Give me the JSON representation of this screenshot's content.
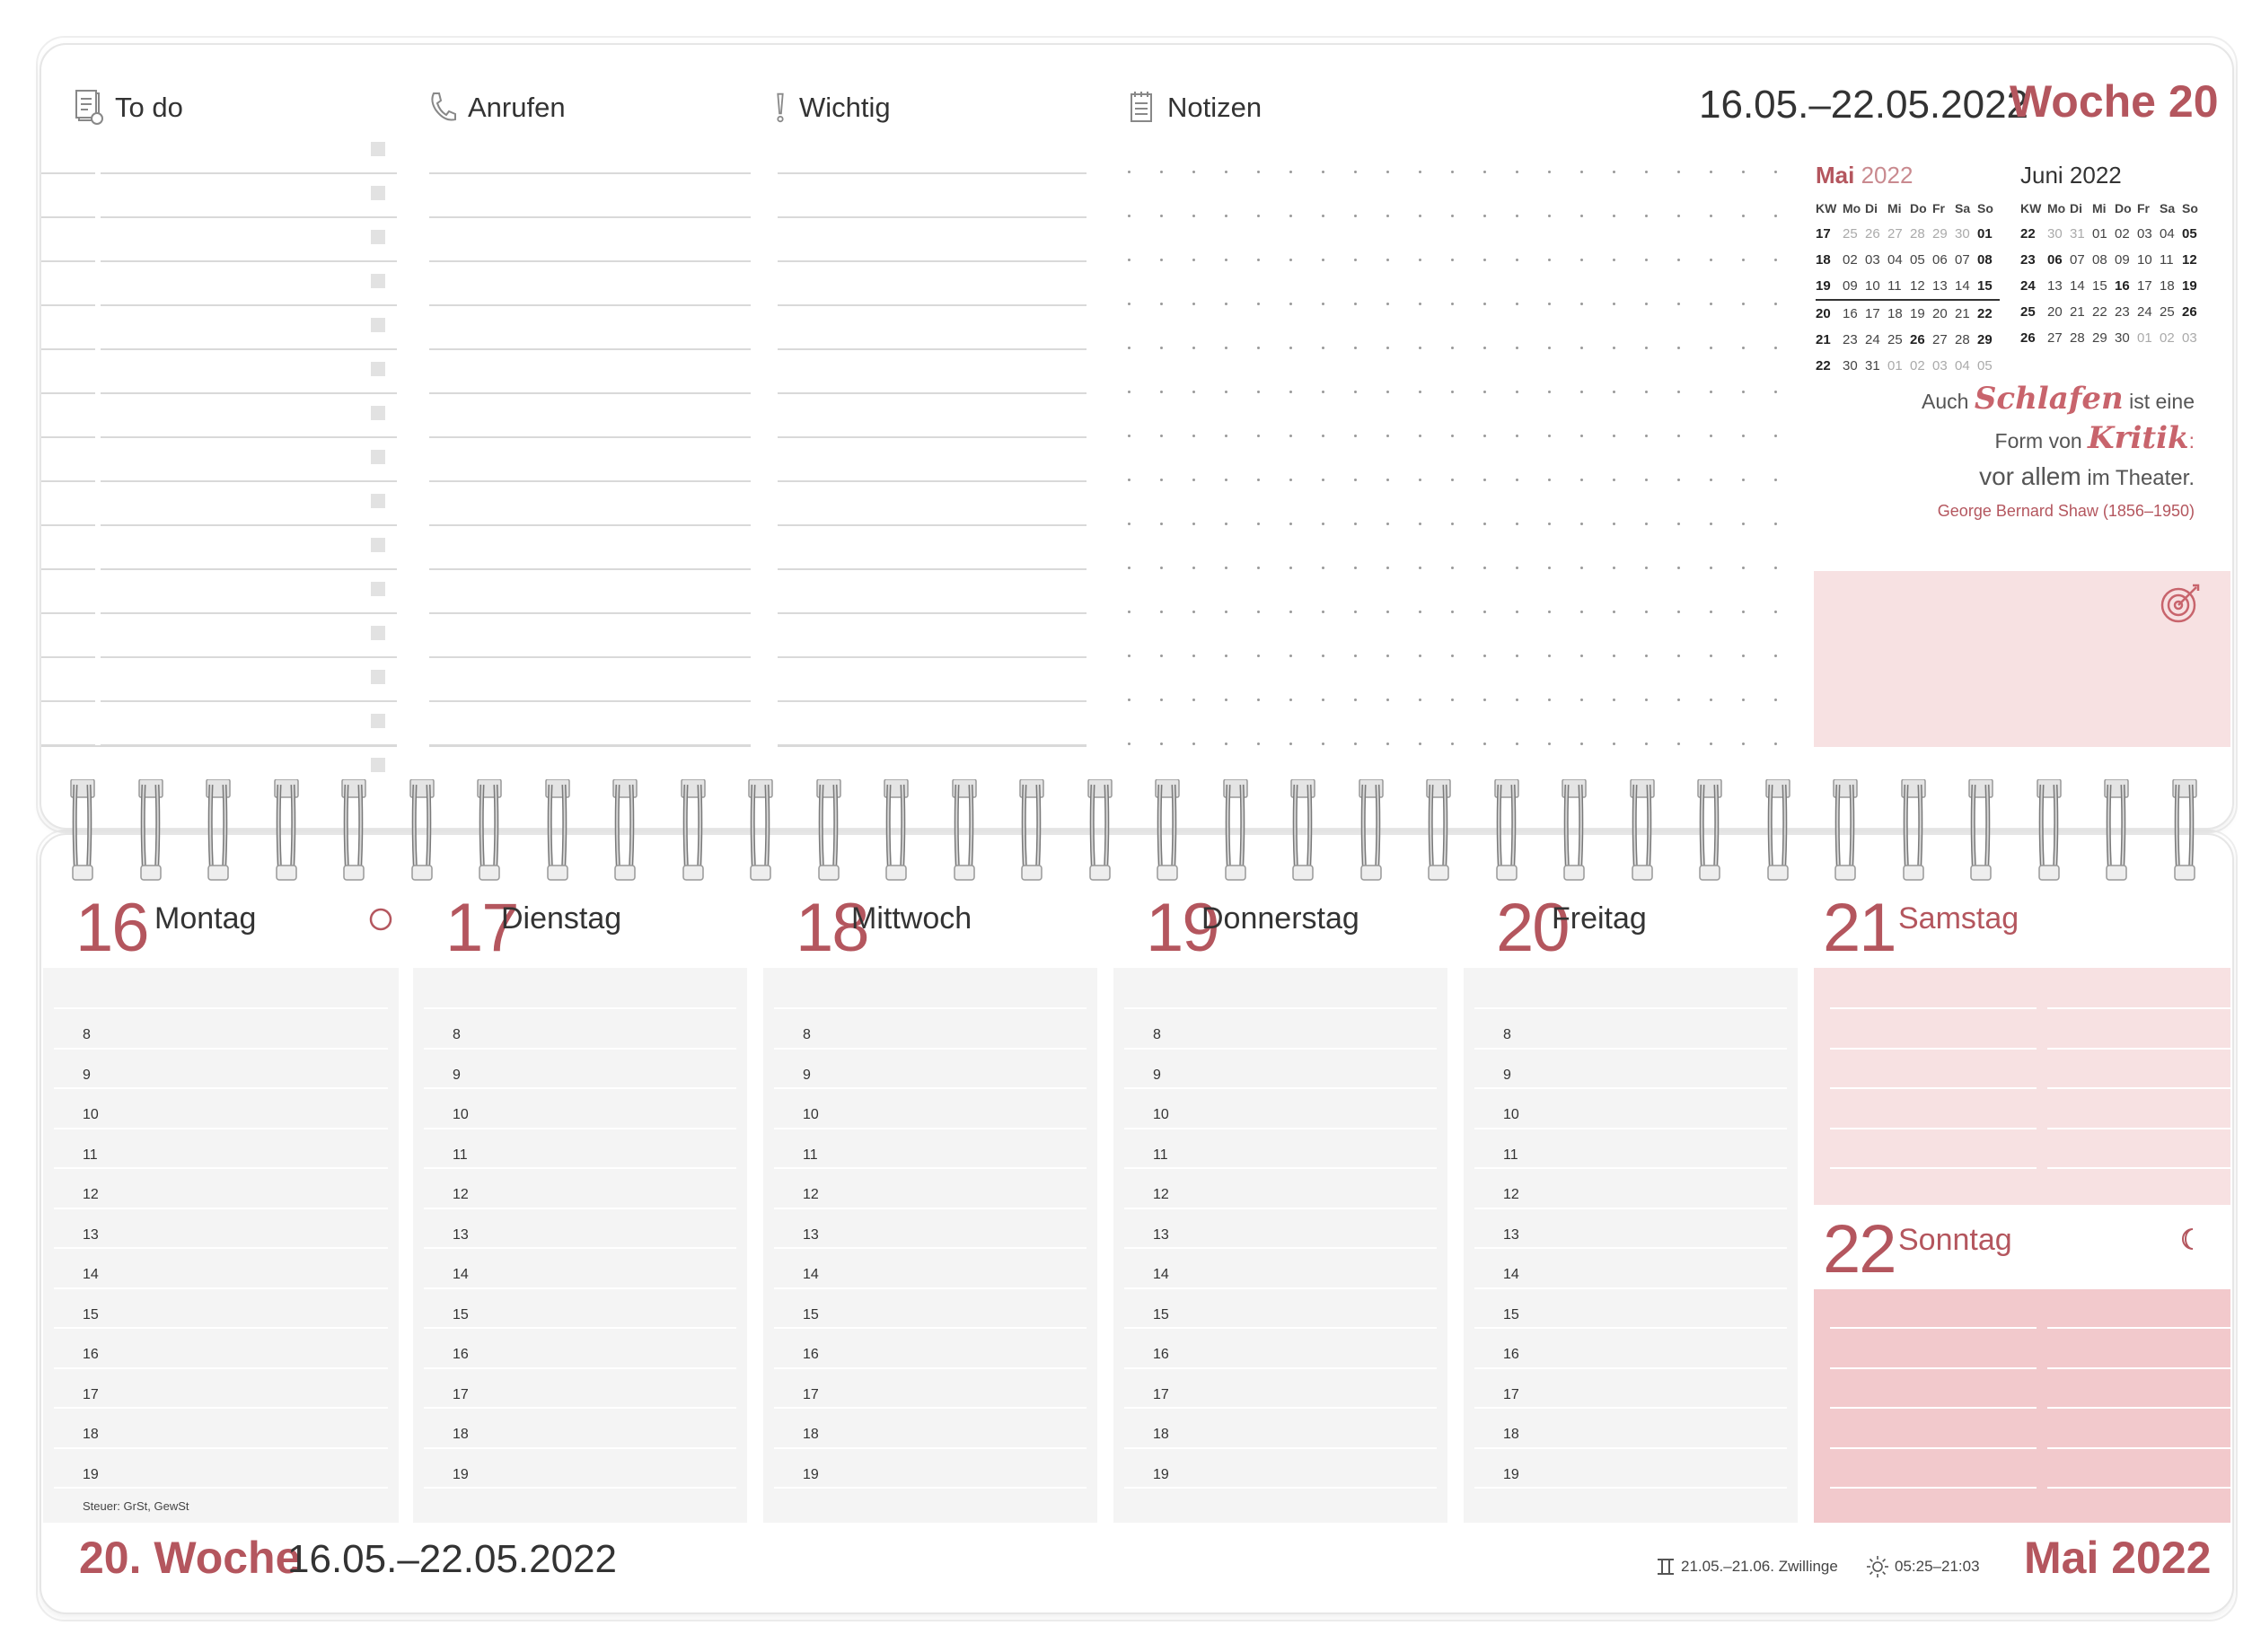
{
  "header": {
    "columns": [
      {
        "label": "To do",
        "icon": "todo-list-icon"
      },
      {
        "label": "Anrufen",
        "icon": "phone-icon"
      },
      {
        "label": "Wichtig",
        "icon": "exclamation-icon"
      },
      {
        "label": "Notizen",
        "icon": "notepad-icon"
      }
    ],
    "week_dates": "16.05.–22.05.2022",
    "week_label": "Woche 20"
  },
  "mini_calendars": [
    {
      "month": "Mai",
      "year": "2022",
      "headers": [
        "KW",
        "Mo",
        "Di",
        "Mi",
        "Do",
        "Fr",
        "Sa",
        "So"
      ],
      "rows": [
        [
          "17",
          "25",
          "26",
          "27",
          "28",
          "29",
          "30",
          "01"
        ],
        [
          "18",
          "02",
          "03",
          "04",
          "05",
          "06",
          "07",
          "08"
        ],
        [
          "19",
          "09",
          "10",
          "11",
          "12",
          "13",
          "14",
          "15"
        ],
        [
          "20",
          "16",
          "17",
          "18",
          "19",
          "20",
          "21",
          "22"
        ],
        [
          "21",
          "23",
          "24",
          "25",
          "26",
          "27",
          "28",
          "29"
        ],
        [
          "22",
          "30",
          "31",
          "01",
          "02",
          "03",
          "04",
          "05"
        ]
      ]
    },
    {
      "month": "Juni 2022",
      "headers": [
        "KW",
        "Mo",
        "Di",
        "Mi",
        "Do",
        "Fr",
        "Sa",
        "So"
      ],
      "rows": [
        [
          "22",
          "30",
          "31",
          "01",
          "02",
          "03",
          "04",
          "05"
        ],
        [
          "23",
          "06",
          "07",
          "08",
          "09",
          "10",
          "11",
          "12"
        ],
        [
          "24",
          "13",
          "14",
          "15",
          "16",
          "17",
          "18",
          "19"
        ],
        [
          "25",
          "20",
          "21",
          "22",
          "23",
          "24",
          "25",
          "26"
        ],
        [
          "26",
          "27",
          "28",
          "29",
          "30",
          "01",
          "02",
          "03"
        ]
      ]
    }
  ],
  "quote": {
    "line1_a": "Auch",
    "line1_script": "Schlafen",
    "line1_b": "ist eine",
    "line2_a": "Form von",
    "line2_script": "Kritik",
    "line2_b": ":",
    "line3_a": "vor allem",
    "line3_b": "im Theater.",
    "author": "George Bernard Shaw (1856–1950)"
  },
  "goal_icon": "target-icon",
  "days": [
    {
      "num": "16",
      "name": "Montag",
      "moon_icon": "full-moon-icon"
    },
    {
      "num": "17",
      "name": "Dienstag"
    },
    {
      "num": "18",
      "name": "Mittwoch"
    },
    {
      "num": "19",
      "name": "Donnerstag"
    },
    {
      "num": "20",
      "name": "Freitag"
    },
    {
      "num": "21",
      "name": "Samstag"
    },
    {
      "num": "22",
      "name": "Sonntag",
      "moon_icon": "crescent-moon-icon"
    }
  ],
  "hours": [
    "8",
    "9",
    "10",
    "11",
    "12",
    "13",
    "14",
    "15",
    "16",
    "17",
    "18",
    "19"
  ],
  "tax_note": "Steuer: GrSt, GewSt",
  "footer": {
    "week_label": "20. Woche",
    "week_dates": "16.05.–22.05.2022",
    "zodiac": "21.05.–21.06. Zwillinge",
    "zodiac_icon": "gemini-icon",
    "sun": "05:25–21:03",
    "sun_icon": "sun-icon",
    "month": "Mai 2022"
  },
  "colors": {
    "accent": "#b4565e",
    "pink_light": "#f7e1e2",
    "pink_mid": "#f2c9cc",
    "grey_panel": "#f4f4f4"
  }
}
